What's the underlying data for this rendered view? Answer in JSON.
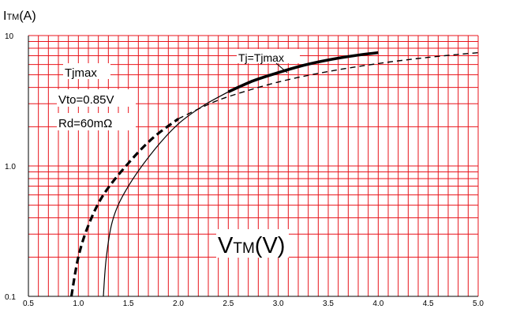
{
  "chart_data": {
    "type": "line",
    "y_title": {
      "main": "I",
      "sub": "TM",
      "unit": "(A)"
    },
    "x_title": {
      "main": "V",
      "sub": "TM",
      "unit": "(V)"
    },
    "xscale": "linear",
    "yscale": "log",
    "xlim": [
      0.5,
      5.0
    ],
    "ylim": [
      0.1,
      10
    ],
    "x_ticks": [
      "0.5",
      "1.0",
      "1.5",
      "2.0",
      "2.5",
      "3.0",
      "3.5",
      "4.0",
      "4.5",
      "5.0"
    ],
    "y_tick_labels": [
      "10",
      "1.0",
      "0.1"
    ],
    "grid": true,
    "annotations": [
      "Tjmax",
      "Vto=0.85V",
      "Rd=60mΩ"
    ],
    "series": [
      {
        "name": "Tj=Tjmax",
        "style": "solid",
        "points": [
          [
            1.25,
            0.1
          ],
          [
            1.28,
            0.2
          ],
          [
            1.35,
            0.4
          ],
          [
            1.5,
            0.7
          ],
          [
            1.75,
            1.3
          ],
          [
            2.0,
            2.1
          ],
          [
            2.25,
            2.9
          ],
          [
            2.5,
            3.7
          ],
          [
            2.75,
            4.5
          ],
          [
            3.0,
            5.2
          ],
          [
            3.25,
            5.9
          ],
          [
            3.5,
            6.5
          ],
          [
            3.75,
            7.0
          ],
          [
            4.0,
            7.4
          ]
        ]
      },
      {
        "style": "dashed",
        "points": [
          [
            0.93,
            0.1
          ],
          [
            1.0,
            0.2
          ],
          [
            1.1,
            0.35
          ],
          [
            1.25,
            0.6
          ],
          [
            1.5,
            1.05
          ],
          [
            1.75,
            1.65
          ],
          [
            2.0,
            2.3
          ],
          [
            2.25,
            2.85
          ],
          [
            2.5,
            3.4
          ],
          [
            3.0,
            4.4
          ],
          [
            3.5,
            5.3
          ],
          [
            4.0,
            6.1
          ],
          [
            4.5,
            6.8
          ],
          [
            5.0,
            7.4
          ]
        ]
      }
    ],
    "colors": {
      "grid": "#e8141c",
      "axis": "#000000",
      "line": "#000000"
    }
  }
}
